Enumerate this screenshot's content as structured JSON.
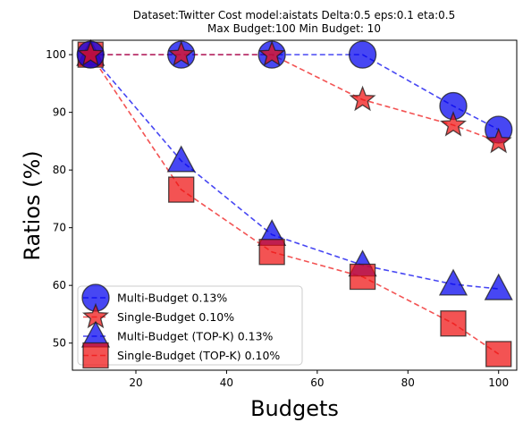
{
  "chart_data": {
    "type": "line",
    "title_lines": [
      "Dataset:Twitter Cost model:aistats Delta:0.5 eps:0.1 eta:0.5",
      "Max Budget:100 Min Budget: 10"
    ],
    "xlabel": "Budgets",
    "ylabel": "Ratios (%)",
    "xlim": [
      6,
      104
    ],
    "ylim": [
      45.3,
      102.5
    ],
    "xticks": [
      20,
      40,
      60,
      80,
      100
    ],
    "yticks": [
      50,
      60,
      70,
      80,
      90,
      100
    ],
    "grid": false,
    "legend_position": "lower-left",
    "x": [
      10,
      30,
      50,
      70,
      90,
      100
    ],
    "series": [
      {
        "name": "Multi-Budget 0.13%",
        "values": [
          100,
          100,
          100,
          100,
          91.1,
          87
        ],
        "color": "#0000ee",
        "marker": "circle"
      },
      {
        "name": "Single-Budget 0.10%",
        "values": [
          100,
          100,
          100,
          92.2,
          87.8,
          84.9
        ],
        "color": "#ee1111",
        "marker": "star"
      },
      {
        "name": "Multi-Budget (TOP-K) 0.13%",
        "values": [
          100,
          81.6,
          68.8,
          63.5,
          60.2,
          59.4
        ],
        "color": "#0000ee",
        "marker": "triangle"
      },
      {
        "name": "Single-Budget (TOP-K) 0.10%",
        "values": [
          100,
          76.6,
          65.8,
          61.5,
          53.4,
          48.1
        ],
        "color": "#ee1111",
        "marker": "square"
      }
    ]
  }
}
